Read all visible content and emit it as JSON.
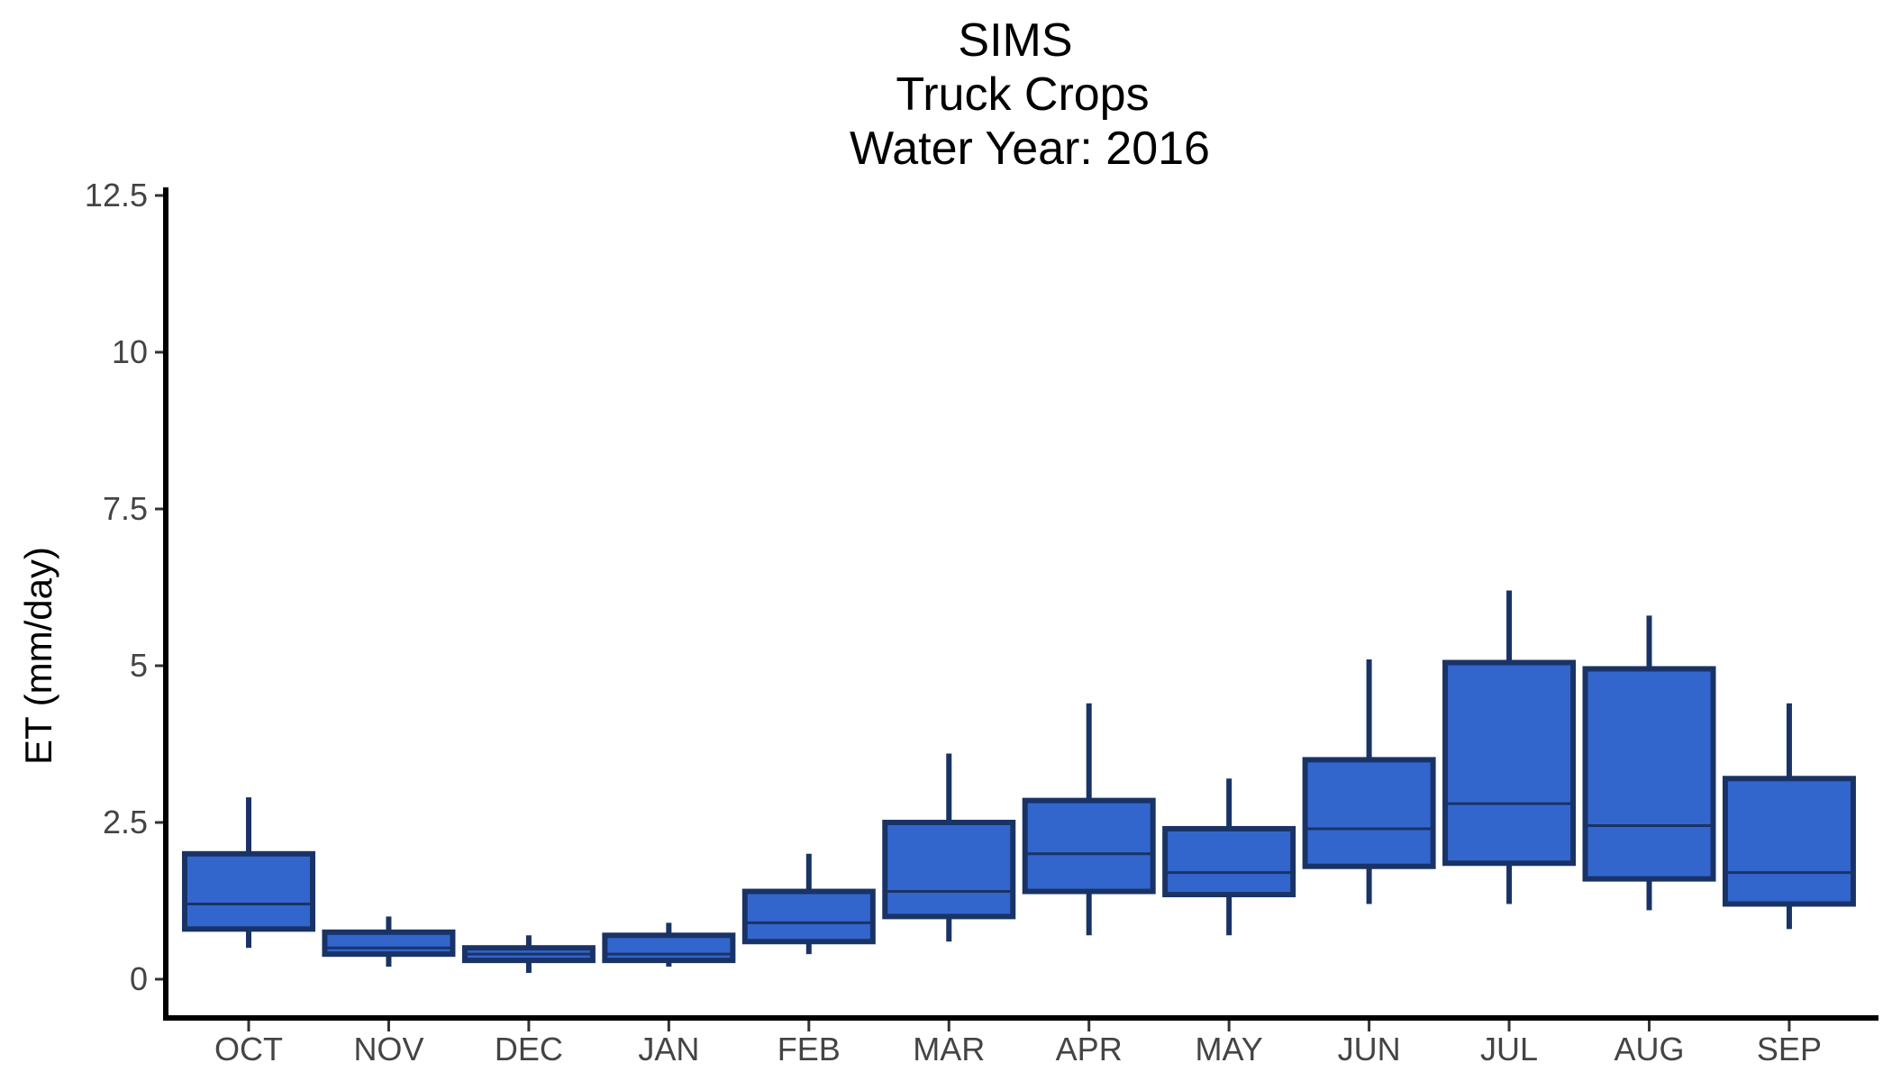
{
  "chart_data": {
    "type": "boxplot",
    "title_lines": [
      "SIMS",
      "Truck Crops",
      "Water Year: 2016"
    ],
    "xlabel": "",
    "ylabel": "ET (mm/day)",
    "ylim": [
      0,
      12.5
    ],
    "yticks": [
      0,
      2.5,
      5,
      7.5,
      10,
      12.5
    ],
    "ytick_labels": [
      "0",
      "2.5",
      "5",
      "7.5",
      "10",
      "12.5"
    ],
    "categories": [
      "OCT",
      "NOV",
      "DEC",
      "JAN",
      "FEB",
      "MAR",
      "APR",
      "MAY",
      "JUN",
      "JUL",
      "AUG",
      "SEP"
    ],
    "boxes": [
      {
        "category": "OCT",
        "low": 0.5,
        "q1": 0.8,
        "median": 1.2,
        "q3": 2.0,
        "high": 2.9
      },
      {
        "category": "NOV",
        "low": 0.2,
        "q1": 0.4,
        "median": 0.5,
        "q3": 0.75,
        "high": 1.0
      },
      {
        "category": "DEC",
        "low": 0.1,
        "q1": 0.3,
        "median": 0.4,
        "q3": 0.5,
        "high": 0.7
      },
      {
        "category": "JAN",
        "low": 0.2,
        "q1": 0.3,
        "median": 0.4,
        "q3": 0.7,
        "high": 0.9
      },
      {
        "category": "FEB",
        "low": 0.4,
        "q1": 0.6,
        "median": 0.9,
        "q3": 1.4,
        "high": 2.0
      },
      {
        "category": "MAR",
        "low": 0.6,
        "q1": 1.0,
        "median": 1.4,
        "q3": 2.5,
        "high": 3.6
      },
      {
        "category": "APR",
        "low": 0.7,
        "q1": 1.4,
        "median": 2.0,
        "q3": 2.85,
        "high": 4.4
      },
      {
        "category": "MAY",
        "low": 0.7,
        "q1": 1.35,
        "median": 1.7,
        "q3": 2.4,
        "high": 3.2
      },
      {
        "category": "JUN",
        "low": 1.2,
        "q1": 1.8,
        "median": 2.4,
        "q3": 3.5,
        "high": 5.1
      },
      {
        "category": "JUL",
        "low": 1.2,
        "q1": 1.85,
        "median": 2.8,
        "q3": 5.05,
        "high": 6.2
      },
      {
        "category": "AUG",
        "low": 1.1,
        "q1": 1.6,
        "median": 2.45,
        "q3": 4.95,
        "high": 5.8
      },
      {
        "category": "SEP",
        "low": 0.8,
        "q1": 1.2,
        "median": 1.7,
        "q3": 3.2,
        "high": 4.4
      }
    ],
    "colors": {
      "fill": "#3366cc",
      "outline": "#1a3366",
      "axis": "#000000",
      "tick_text": "#444444"
    },
    "grid": false,
    "legend": "none"
  }
}
